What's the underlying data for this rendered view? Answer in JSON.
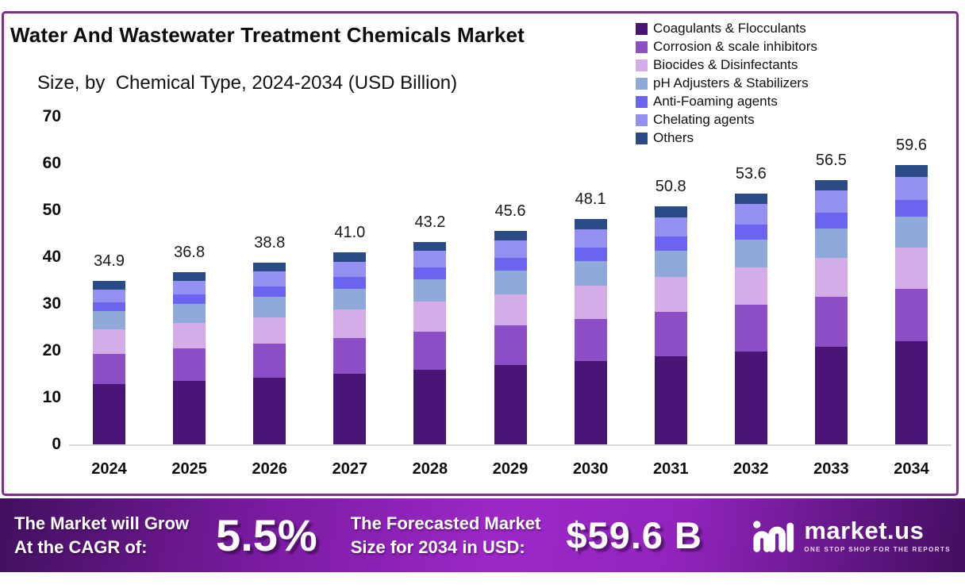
{
  "header": {
    "title": "Water And Wastewater Treatment Chemicals Market",
    "subtitle": "Size, by  Chemical Type, 2024-2034 (USD Billion)"
  },
  "chart_data": {
    "type": "bar",
    "stacked": true,
    "title": "Water And Wastewater Treatment Chemicals Market Size, by Chemical Type, 2024-2034 (USD Billion)",
    "xlabel": "",
    "ylabel": "USD Billion",
    "ylim": [
      0,
      70
    ],
    "yticks": [
      0,
      10,
      20,
      30,
      40,
      50,
      60,
      70
    ],
    "grid": false,
    "legend_position": "top-right",
    "categories": [
      "2024",
      "2025",
      "2026",
      "2027",
      "2028",
      "2029",
      "2030",
      "2031",
      "2032",
      "2033",
      "2034"
    ],
    "totals": [
      "34.9",
      "36.8",
      "38.8",
      "41.0",
      "43.2",
      "45.6",
      "48.1",
      "50.8",
      "53.6",
      "56.5",
      "59.6"
    ],
    "series": [
      {
        "name": "Coagulants & Flocculants",
        "color": "#4A1577",
        "values": [
          12.9,
          13.6,
          14.3,
          15.1,
          16.0,
          16.9,
          17.8,
          18.8,
          19.8,
          20.9,
          22.0
        ]
      },
      {
        "name": "Corrosion & scale inhibitors",
        "color": "#8C4FC6",
        "values": [
          6.5,
          6.9,
          7.2,
          7.7,
          8.1,
          8.5,
          9.0,
          9.5,
          10.0,
          10.6,
          11.2
        ]
      },
      {
        "name": "Biocides & Disinfectants",
        "color": "#D3ACE8",
        "values": [
          5.1,
          5.4,
          5.7,
          6.0,
          6.4,
          6.7,
          7.1,
          7.5,
          8.0,
          8.4,
          8.9
        ]
      },
      {
        "name": "pH Adjusters & Stabilizers",
        "color": "#8FA9D9",
        "values": [
          3.9,
          4.1,
          4.3,
          4.5,
          4.8,
          5.0,
          5.3,
          5.6,
          5.9,
          6.2,
          6.5
        ]
      },
      {
        "name": "Anti-Foaming agents",
        "color": "#6A64EF",
        "values": [
          2.0,
          2.1,
          2.3,
          2.4,
          2.5,
          2.7,
          2.8,
          3.0,
          3.2,
          3.4,
          3.6
        ]
      },
      {
        "name": "Chelating agents",
        "color": "#9491F2",
        "values": [
          2.7,
          2.9,
          3.1,
          3.3,
          3.5,
          3.7,
          3.9,
          4.1,
          4.4,
          4.7,
          5.0
        ]
      },
      {
        "name": "Others",
        "color": "#2B4B87",
        "values": [
          1.8,
          1.8,
          1.9,
          2.0,
          1.9,
          2.1,
          2.2,
          2.3,
          2.3,
          2.3,
          2.4
        ]
      }
    ]
  },
  "banner": {
    "left_line1": "The Market will Grow",
    "left_line2": "At the CAGR of:",
    "cagr": "5.5%",
    "mid_line1": "The Forecasted Market",
    "mid_line2": "Size for 2034 in USD:",
    "value": "$59.6 B",
    "brand": "market.us",
    "tagline": "ONE STOP SHOP FOR THE REPORTS"
  },
  "colors": {
    "card_border": "#7E2D8F",
    "axis_line": "#D9D9D9",
    "banner_gradient_start": "#42105E",
    "banner_gradient_mid": "#9D28C8",
    "banner_gradient_end": "#430E60"
  }
}
